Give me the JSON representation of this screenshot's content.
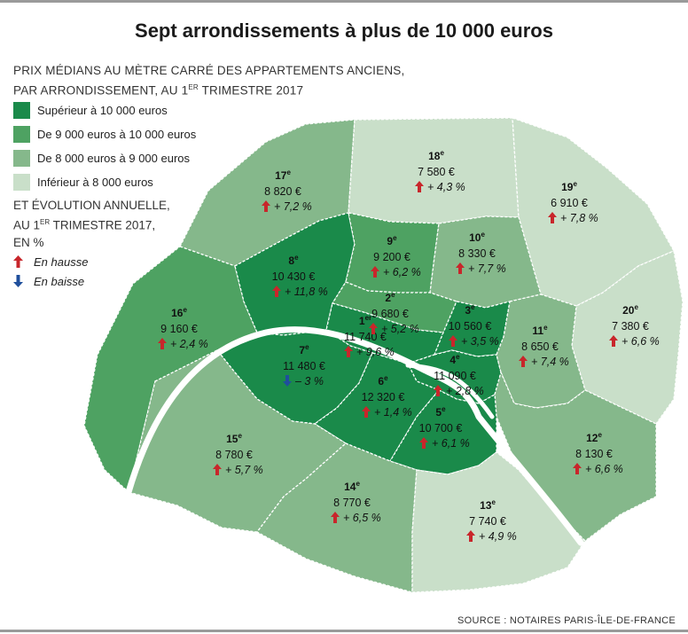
{
  "title": "Sept arrondissements à plus de 10 000 euros",
  "subtitle": {
    "line1": "PRIX MÉDIANS AU MÈTRE CARRÉ DES APPARTEMENTS ANCIENS,",
    "line2_pre": "PAR ARRONDISSEMENT, AU 1",
    "line2_sup": "ER",
    "line2_post": " TRIMESTRE 2017"
  },
  "legend": [
    {
      "label": "Supérieur à 10 000 euros",
      "color": "#1a8a4a"
    },
    {
      "label": "De 9 000 euros à 10 000 euros",
      "color": "#4ea262"
    },
    {
      "label": "De 8 000 euros à 9 000 euros",
      "color": "#85b88b"
    },
    {
      "label": "Inférieur à 8 000 euros",
      "color": "#c9dfc9"
    }
  ],
  "evolution": {
    "line1": "ET ÉVOLUTION ANNUELLE,",
    "line2_pre": "AU 1",
    "line2_sup": "ER",
    "line2_post": " TRIMESTRE 2017,",
    "line3": "EN %",
    "up_label": "En hausse",
    "down_label": "En baisse",
    "up_color": "#c8262b",
    "down_color": "#1f4f9c"
  },
  "source": "SOURCE : NOTAIRES PARIS-ÎLE-DE-FRANCE",
  "arrondissements": [
    {
      "num": "1",
      "sup": "er",
      "price": "11 740 €",
      "evo": "+ 9,6 %",
      "dir": "up"
    },
    {
      "num": "2",
      "sup": "e",
      "price": "9 680 €",
      "evo": "+ 5,2 %",
      "dir": "up"
    },
    {
      "num": "3",
      "sup": "e",
      "price": "10 560 €",
      "evo": "+ 3,5 %",
      "dir": "up"
    },
    {
      "num": "4",
      "sup": "e",
      "price": "11 090 €",
      "evo": "+ 2,8 %",
      "dir": "up"
    },
    {
      "num": "5",
      "sup": "e",
      "price": "10 700 €",
      "evo": "+ 6,1 %",
      "dir": "up"
    },
    {
      "num": "6",
      "sup": "e",
      "price": "12 320 €",
      "evo": "+ 1,4 %",
      "dir": "up"
    },
    {
      "num": "7",
      "sup": "e",
      "price": "11 480 €",
      "evo": "– 3 %",
      "dir": "down"
    },
    {
      "num": "8",
      "sup": "e",
      "price": "10 430 €",
      "evo": "+ 11,8 %",
      "dir": "up"
    },
    {
      "num": "9",
      "sup": "e",
      "price": "9 200 €",
      "evo": "+ 6,2 %",
      "dir": "up"
    },
    {
      "num": "10",
      "sup": "e",
      "price": "8 330 €",
      "evo": "+ 7,7 %",
      "dir": "up"
    },
    {
      "num": "11",
      "sup": "e",
      "price": "8 650 €",
      "evo": "+ 7,4 %",
      "dir": "up"
    },
    {
      "num": "12",
      "sup": "e",
      "price": "8 130 €",
      "evo": "+ 6,6 %",
      "dir": "up"
    },
    {
      "num": "13",
      "sup": "e",
      "price": "7 740 €",
      "evo": "+ 4,9 %",
      "dir": "up"
    },
    {
      "num": "14",
      "sup": "e",
      "price": "8 770 €",
      "evo": "+ 6,5 %",
      "dir": "up"
    },
    {
      "num": "15",
      "sup": "e",
      "price": "8 780 €",
      "evo": "+ 5,7 %",
      "dir": "up"
    },
    {
      "num": "16",
      "sup": "e",
      "price": "9 160 €",
      "evo": "+ 2,4 %",
      "dir": "up"
    },
    {
      "num": "17",
      "sup": "e",
      "price": "8 820 €",
      "evo": "+ 7,2 %",
      "dir": "up"
    },
    {
      "num": "18",
      "sup": "e",
      "price": "7 580 €",
      "evo": "+ 4,3 %",
      "dir": "up"
    },
    {
      "num": "19",
      "sup": "e",
      "price": "6 910 €",
      "evo": "+ 7,8 %",
      "dir": "up"
    },
    {
      "num": "20",
      "sup": "e",
      "price": "7 380 €",
      "evo": "+ 6,6 %",
      "dir": "up"
    }
  ]
}
